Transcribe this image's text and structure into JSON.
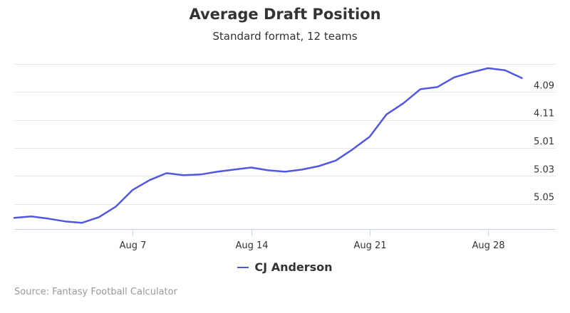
{
  "colors": {
    "series": "#5157e0",
    "grid": "#e6e6e6",
    "axis": "#ccd6eb",
    "source_text": "#999999"
  },
  "chart_data": {
    "type": "line",
    "title": "Average Draft Position",
    "subtitle": "Standard format, 12 teams",
    "y_axis_position": "right",
    "y_reversed": true,
    "y_note": "Values are overall picks converted to round.pick (12 teams); rendered top = earlier pick",
    "y_ticks": [
      {
        "pick": 45,
        "label": "4.09"
      },
      {
        "pick": 47,
        "label": "4.11"
      },
      {
        "pick": 49,
        "label": "5.01"
      },
      {
        "pick": 51,
        "label": "5.03"
      },
      {
        "pick": 53,
        "label": "5.05"
      }
    ],
    "y_grid_picks": [
      43,
      45,
      47,
      49,
      51,
      53
    ],
    "ylim": [
      43,
      54.8
    ],
    "xlim": [
      "Jul 31",
      "Sep 1"
    ],
    "x_ticks": [
      "Aug 7",
      "Aug 14",
      "Aug 21",
      "Aug 28"
    ],
    "grid": true,
    "legend_position": "bottom",
    "series": [
      {
        "name": "CJ Anderson",
        "points": [
          {
            "x": "Jul 31",
            "y": 54.0
          },
          {
            "x": "Aug 1",
            "y": 53.9
          },
          {
            "x": "Aug 2",
            "y": 54.05
          },
          {
            "x": "Aug 3",
            "y": 54.25
          },
          {
            "x": "Aug 4",
            "y": 54.35
          },
          {
            "x": "Aug 5",
            "y": 53.95
          },
          {
            "x": "Aug 6",
            "y": 53.2
          },
          {
            "x": "Aug 7",
            "y": 52.0
          },
          {
            "x": "Aug 8",
            "y": 51.3
          },
          {
            "x": "Aug 9",
            "y": 50.8
          },
          {
            "x": "Aug 10",
            "y": 50.95
          },
          {
            "x": "Aug 11",
            "y": 50.9
          },
          {
            "x": "Aug 12",
            "y": 50.7
          },
          {
            "x": "Aug 13",
            "y": 50.55
          },
          {
            "x": "Aug 14",
            "y": 50.4
          },
          {
            "x": "Aug 15",
            "y": 50.6
          },
          {
            "x": "Aug 16",
            "y": 50.7
          },
          {
            "x": "Aug 17",
            "y": 50.55
          },
          {
            "x": "Aug 18",
            "y": 50.3
          },
          {
            "x": "Aug 19",
            "y": 49.9
          },
          {
            "x": "Aug 20",
            "y": 49.1
          },
          {
            "x": "Aug 21",
            "y": 48.2
          },
          {
            "x": "Aug 22",
            "y": 46.6
          },
          {
            "x": "Aug 23",
            "y": 45.8
          },
          {
            "x": "Aug 24",
            "y": 44.8
          },
          {
            "x": "Aug 25",
            "y": 44.65
          },
          {
            "x": "Aug 26",
            "y": 43.95
          },
          {
            "x": "Aug 27",
            "y": 43.6
          },
          {
            "x": "Aug 28",
            "y": 43.3
          },
          {
            "x": "Aug 29",
            "y": 43.45
          },
          {
            "x": "Aug 30",
            "y": 44.0
          }
        ]
      }
    ]
  },
  "legend": {
    "label": "CJ Anderson"
  },
  "source": {
    "text": "Source: Fantasy Football Calculator"
  }
}
